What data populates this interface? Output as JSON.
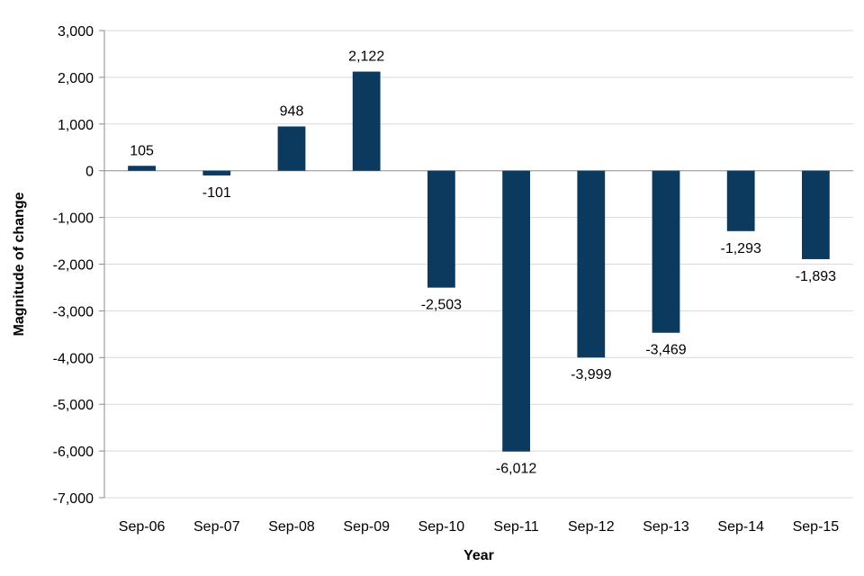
{
  "chart_data": {
    "type": "bar",
    "title": "",
    "xlabel": "Year",
    "ylabel": "Magnitude of change",
    "categories": [
      "Sep-06",
      "Sep-07",
      "Sep-08",
      "Sep-09",
      "Sep-10",
      "Sep-11",
      "Sep-12",
      "Sep-13",
      "Sep-14",
      "Sep-15"
    ],
    "values": [
      105,
      -101,
      948,
      2122,
      -2503,
      -6012,
      -3999,
      -3469,
      -1293,
      -1893
    ],
    "data_labels": [
      "105",
      "-101",
      "948",
      "2,122",
      "-2,503",
      "-6,012",
      "-3,999",
      "-3,469",
      "-1,293",
      "-1,893"
    ],
    "ylim": [
      -7000,
      3000
    ],
    "y_ticks": [
      3000,
      2000,
      1000,
      0,
      -1000,
      -2000,
      -3000,
      -4000,
      -5000,
      -6000,
      -7000
    ],
    "y_tick_labels": [
      "3,000",
      "2,000",
      "1,000",
      "0",
      "-1,000",
      "-2,000",
      "-3,000",
      "-4,000",
      "-5,000",
      "-6,000",
      "-7,000"
    ],
    "grid": true,
    "legend": "none",
    "colors": {
      "bar": "#0b3a5e",
      "grid": "#d9d9d9",
      "axis": "#8c8c8c"
    }
  }
}
